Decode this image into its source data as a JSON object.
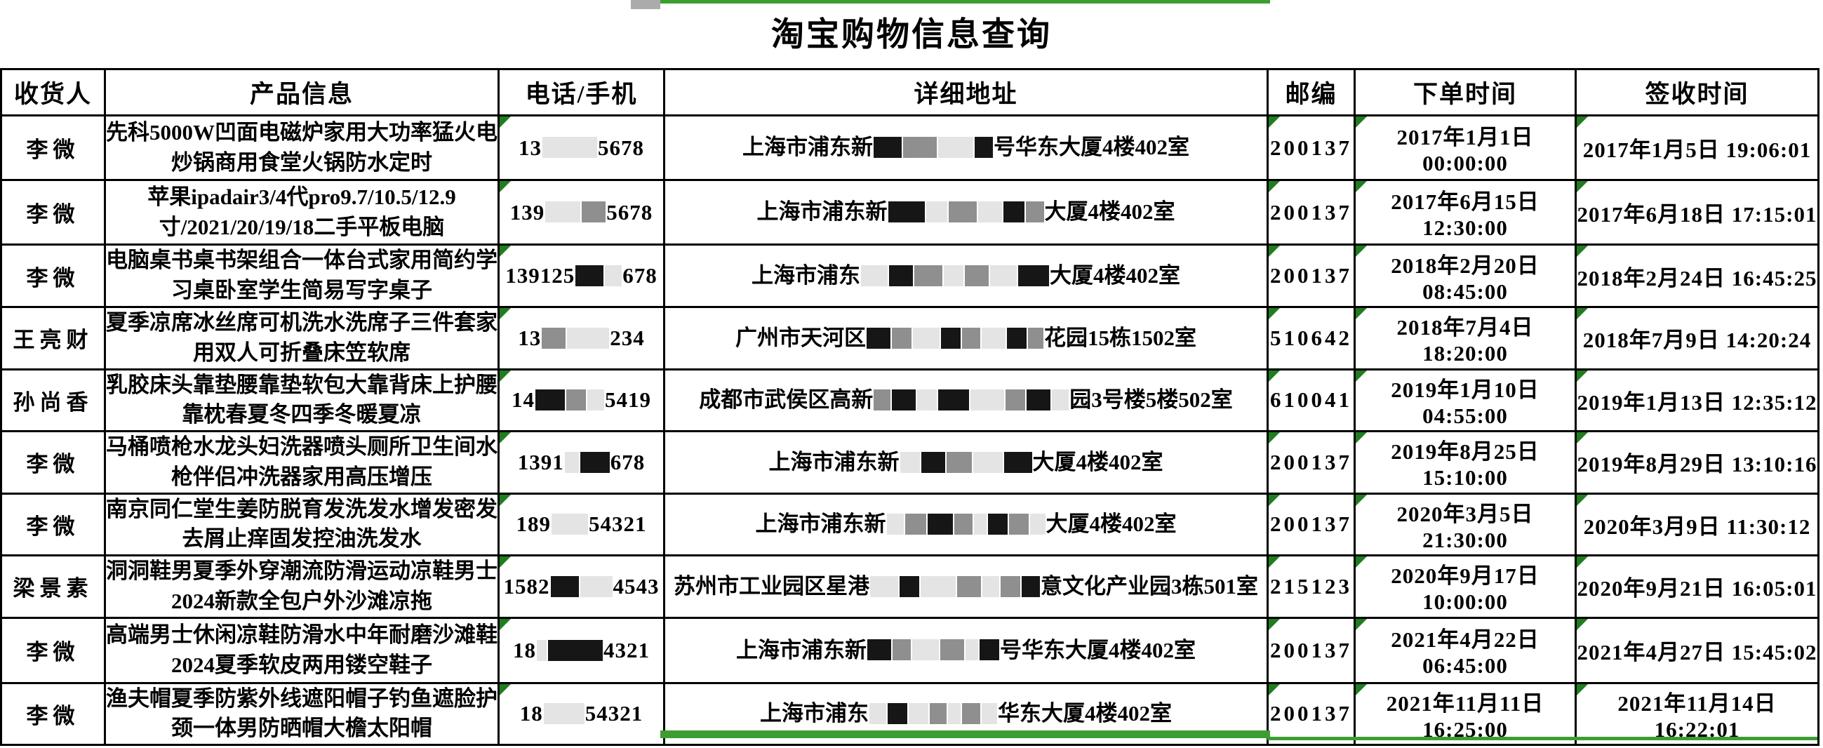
{
  "title": "淘宝购物信息查询",
  "columns": [
    "收货人",
    "产品信息",
    "电话/手机",
    "详细地址",
    "邮编",
    "下单时间",
    "签收时间"
  ],
  "colors": {
    "selection_green": "#3c9e31",
    "flag_triangle_green": "#217c21",
    "border_black": "#000000",
    "redaction_dark": "#161616",
    "redaction_mid": "#8f8f8f",
    "redaction_light": "#e4e4e4"
  },
  "rows": [
    {
      "recipient": "李微",
      "product": "先科5000W凹面电磁炉家用大功率猛火电炒锅商用食堂火锅防水定时",
      "phone": [
        {
          "t": "13"
        },
        {
          "r": 78,
          "c": "light"
        },
        {
          "t": "5678"
        }
      ],
      "address": [
        {
          "t": "上海市浦东新"
        },
        {
          "r": 40,
          "c": "dark"
        },
        {
          "r": 48,
          "c": "mid"
        },
        {
          "r": 50,
          "c": "light"
        },
        {
          "r": 26,
          "c": "dark"
        },
        {
          "t": "号华东大厦4楼402室"
        }
      ],
      "postal": "200137",
      "order_time": "2017年1月1日 00:00:00",
      "sign_time": "2017年1月5日 19:06:01"
    },
    {
      "recipient": "李微",
      "product": "苹果ipadair3/4代pro9.7/10.5/12.9寸/2021/20/19/18二手平板电脑",
      "phone": [
        {
          "t": "139"
        },
        {
          "r": 50,
          "c": "light"
        },
        {
          "r": 34,
          "c": "mid"
        },
        {
          "t": "5678"
        }
      ],
      "address": [
        {
          "t": "上海市浦东新"
        },
        {
          "r": 52,
          "c": "dark"
        },
        {
          "r": 30,
          "c": "light"
        },
        {
          "r": 40,
          "c": "mid"
        },
        {
          "r": 34,
          "c": "light"
        },
        {
          "r": 30,
          "c": "dark"
        },
        {
          "r": 26,
          "c": "mid"
        },
        {
          "t": "大厦4楼402室"
        }
      ],
      "postal": "200137",
      "order_time": "2017年6月15日 12:30:00",
      "sign_time": "2017年6月18日 17:15:01"
    },
    {
      "recipient": "李微",
      "product": "电脑桌书桌书架组合一体台式家用简约学习桌卧室学生简易写字桌子",
      "phone": [
        {
          "t": "139125"
        },
        {
          "r": 40,
          "c": "dark"
        },
        {
          "r": 24,
          "c": "light"
        },
        {
          "t": "678"
        }
      ],
      "address": [
        {
          "t": "上海市浦东"
        },
        {
          "r": 38,
          "c": "light"
        },
        {
          "r": 34,
          "c": "dark"
        },
        {
          "r": 40,
          "c": "mid"
        },
        {
          "r": 28,
          "c": "light"
        },
        {
          "r": 34,
          "c": "mid"
        },
        {
          "r": 38,
          "c": "light"
        },
        {
          "r": 44,
          "c": "dark"
        },
        {
          "t": "大厦4楼402室"
        }
      ],
      "postal": "200137",
      "order_time": "2018年2月20日 08:45:00",
      "sign_time": "2018年2月24日 16:45:25"
    },
    {
      "recipient": "王亮财",
      "product": "夏季凉席冰丝席可机洗水洗席子三件套家用双人可折叠床笠软席",
      "phone": [
        {
          "t": "13"
        },
        {
          "r": 34,
          "c": "mid"
        },
        {
          "r": 60,
          "c": "light"
        },
        {
          "t": "234"
        }
      ],
      "address": [
        {
          "t": "广州市天河区"
        },
        {
          "r": 34,
          "c": "dark"
        },
        {
          "r": 28,
          "c": "mid"
        },
        {
          "r": 38,
          "c": "light"
        },
        {
          "r": 28,
          "c": "dark"
        },
        {
          "r": 26,
          "c": "mid"
        },
        {
          "r": 34,
          "c": "light"
        },
        {
          "r": 28,
          "c": "dark"
        },
        {
          "r": 22,
          "c": "mid"
        },
        {
          "t": "花园15栋1502室"
        }
      ],
      "postal": "510642",
      "order_time": "2018年7月4日 18:20:00",
      "sign_time": "2018年7月9日 14:20:24"
    },
    {
      "recipient": "孙尚香",
      "product": "乳胶床头靠垫腰靠垫软包大靠背床上护腰靠枕春夏冬四季冬暖夏凉",
      "phone": [
        {
          "t": "14"
        },
        {
          "r": 42,
          "c": "dark"
        },
        {
          "r": 28,
          "c": "mid"
        },
        {
          "r": 24,
          "c": "light"
        },
        {
          "t": "5419"
        }
      ],
      "address": [
        {
          "t": "成都市武侯区高新"
        },
        {
          "r": 24,
          "c": "mid"
        },
        {
          "r": 34,
          "c": "dark"
        },
        {
          "r": 28,
          "c": "light"
        },
        {
          "r": 44,
          "c": "dark"
        },
        {
          "r": 48,
          "c": "light"
        },
        {
          "r": 28,
          "c": "mid"
        },
        {
          "r": 34,
          "c": "dark"
        },
        {
          "r": 24,
          "c": "light"
        },
        {
          "t": "园3号楼5楼502室"
        }
      ],
      "postal": "610041",
      "order_time": "2019年1月10日 04:55:00",
      "sign_time": "2019年1月13日 12:35:12"
    },
    {
      "recipient": "李微",
      "product": "马桶喷枪水龙头妇洗器喷头厕所卫生间水枪伴侣冲洗器家用高压增压",
      "phone": [
        {
          "t": "1391"
        },
        {
          "r": 20,
          "c": "light"
        },
        {
          "r": 42,
          "c": "dark"
        },
        {
          "t": "678"
        }
      ],
      "address": [
        {
          "t": "上海市浦东新"
        },
        {
          "r": 28,
          "c": "light"
        },
        {
          "r": 34,
          "c": "dark"
        },
        {
          "r": 36,
          "c": "mid"
        },
        {
          "r": 42,
          "c": "light"
        },
        {
          "r": 40,
          "c": "dark"
        },
        {
          "t": "大厦4楼402室"
        }
      ],
      "postal": "200137",
      "order_time": "2019年8月25日 15:10:00",
      "sign_time": "2019年8月29日 13:10:16"
    },
    {
      "recipient": "李微",
      "product": "南京同仁堂生姜防脱育发洗发水增发密发去屑止痒固发控油洗发水",
      "phone": [
        {
          "t": "189"
        },
        {
          "r": 52,
          "c": "light"
        },
        {
          "t": "54321"
        }
      ],
      "address": [
        {
          "t": "上海市浦东新"
        },
        {
          "r": 24,
          "c": "light"
        },
        {
          "r": 30,
          "c": "mid"
        },
        {
          "r": 36,
          "c": "dark"
        },
        {
          "r": 26,
          "c": "mid"
        },
        {
          "r": 18,
          "c": "light"
        },
        {
          "r": 28,
          "c": "dark"
        },
        {
          "r": 28,
          "c": "mid"
        },
        {
          "r": 22,
          "c": "light"
        },
        {
          "t": "大厦4楼402室"
        }
      ],
      "postal": "200137",
      "order_time": "2020年3月5日 21:30:00",
      "sign_time": "2020年3月9日 11:30:12"
    },
    {
      "recipient": "梁景素",
      "product": "洞洞鞋男夏季外穿潮流防滑运动凉鞋男士2024新款全包户外沙滩凉拖",
      "phone": [
        {
          "t": "1582"
        },
        {
          "r": 40,
          "c": "dark"
        },
        {
          "r": 46,
          "c": "light"
        },
        {
          "t": "4543"
        }
      ],
      "address": [
        {
          "t": "苏州市工业园区星港"
        },
        {
          "r": 40,
          "c": "light"
        },
        {
          "r": 28,
          "c": "dark"
        },
        {
          "r": 50,
          "c": "light"
        },
        {
          "r": 34,
          "c": "mid"
        },
        {
          "r": 24,
          "c": "light"
        },
        {
          "r": 28,
          "c": "mid"
        },
        {
          "r": 26,
          "c": "dark"
        },
        {
          "t": "意文化产业园3栋501室"
        }
      ],
      "postal": "215123",
      "order_time": "2020年9月17日 10:00:00",
      "sign_time": "2020年9月21日 16:05:01"
    },
    {
      "recipient": "李微",
      "product": "高端男士休闲凉鞋防滑水中年耐磨沙滩鞋2024夏季软皮两用镂空鞋子",
      "phone": [
        {
          "t": "18"
        },
        {
          "r": 14,
          "c": "light"
        },
        {
          "r": 78,
          "c": "dark"
        },
        {
          "t": "4321"
        }
      ],
      "address": [
        {
          "t": "上海市浦东新"
        },
        {
          "r": 34,
          "c": "dark"
        },
        {
          "r": 26,
          "c": "mid"
        },
        {
          "r": 38,
          "c": "light"
        },
        {
          "r": 34,
          "c": "mid"
        },
        {
          "r": 18,
          "c": "light"
        },
        {
          "r": 28,
          "c": "dark"
        },
        {
          "t": "号华东大厦4楼402室"
        }
      ],
      "postal": "200137",
      "order_time": "2021年4月22日 06:45:00",
      "sign_time": "2021年4月27日 15:45:02"
    },
    {
      "recipient": "李微",
      "product": "渔夫帽夏季防紫外线遮阳帽子钓鱼遮脸护颈一体男防晒帽大檐太阳帽",
      "phone": [
        {
          "t": "18"
        },
        {
          "r": 58,
          "c": "light"
        },
        {
          "t": "54321"
        }
      ],
      "address": [
        {
          "t": "上海市浦东"
        },
        {
          "r": 24,
          "c": "light"
        },
        {
          "r": 28,
          "c": "dark"
        },
        {
          "r": 28,
          "c": "light"
        },
        {
          "r": 24,
          "c": "mid"
        },
        {
          "r": 18,
          "c": "light"
        },
        {
          "r": 26,
          "c": "mid"
        },
        {
          "r": 22,
          "c": "light"
        },
        {
          "t": "华东大厦4楼402室"
        }
      ],
      "postal": "200137",
      "order_time": "2021年11月11日 16:25:00",
      "sign_time": "2021年11月14日 16:22:01"
    }
  ]
}
